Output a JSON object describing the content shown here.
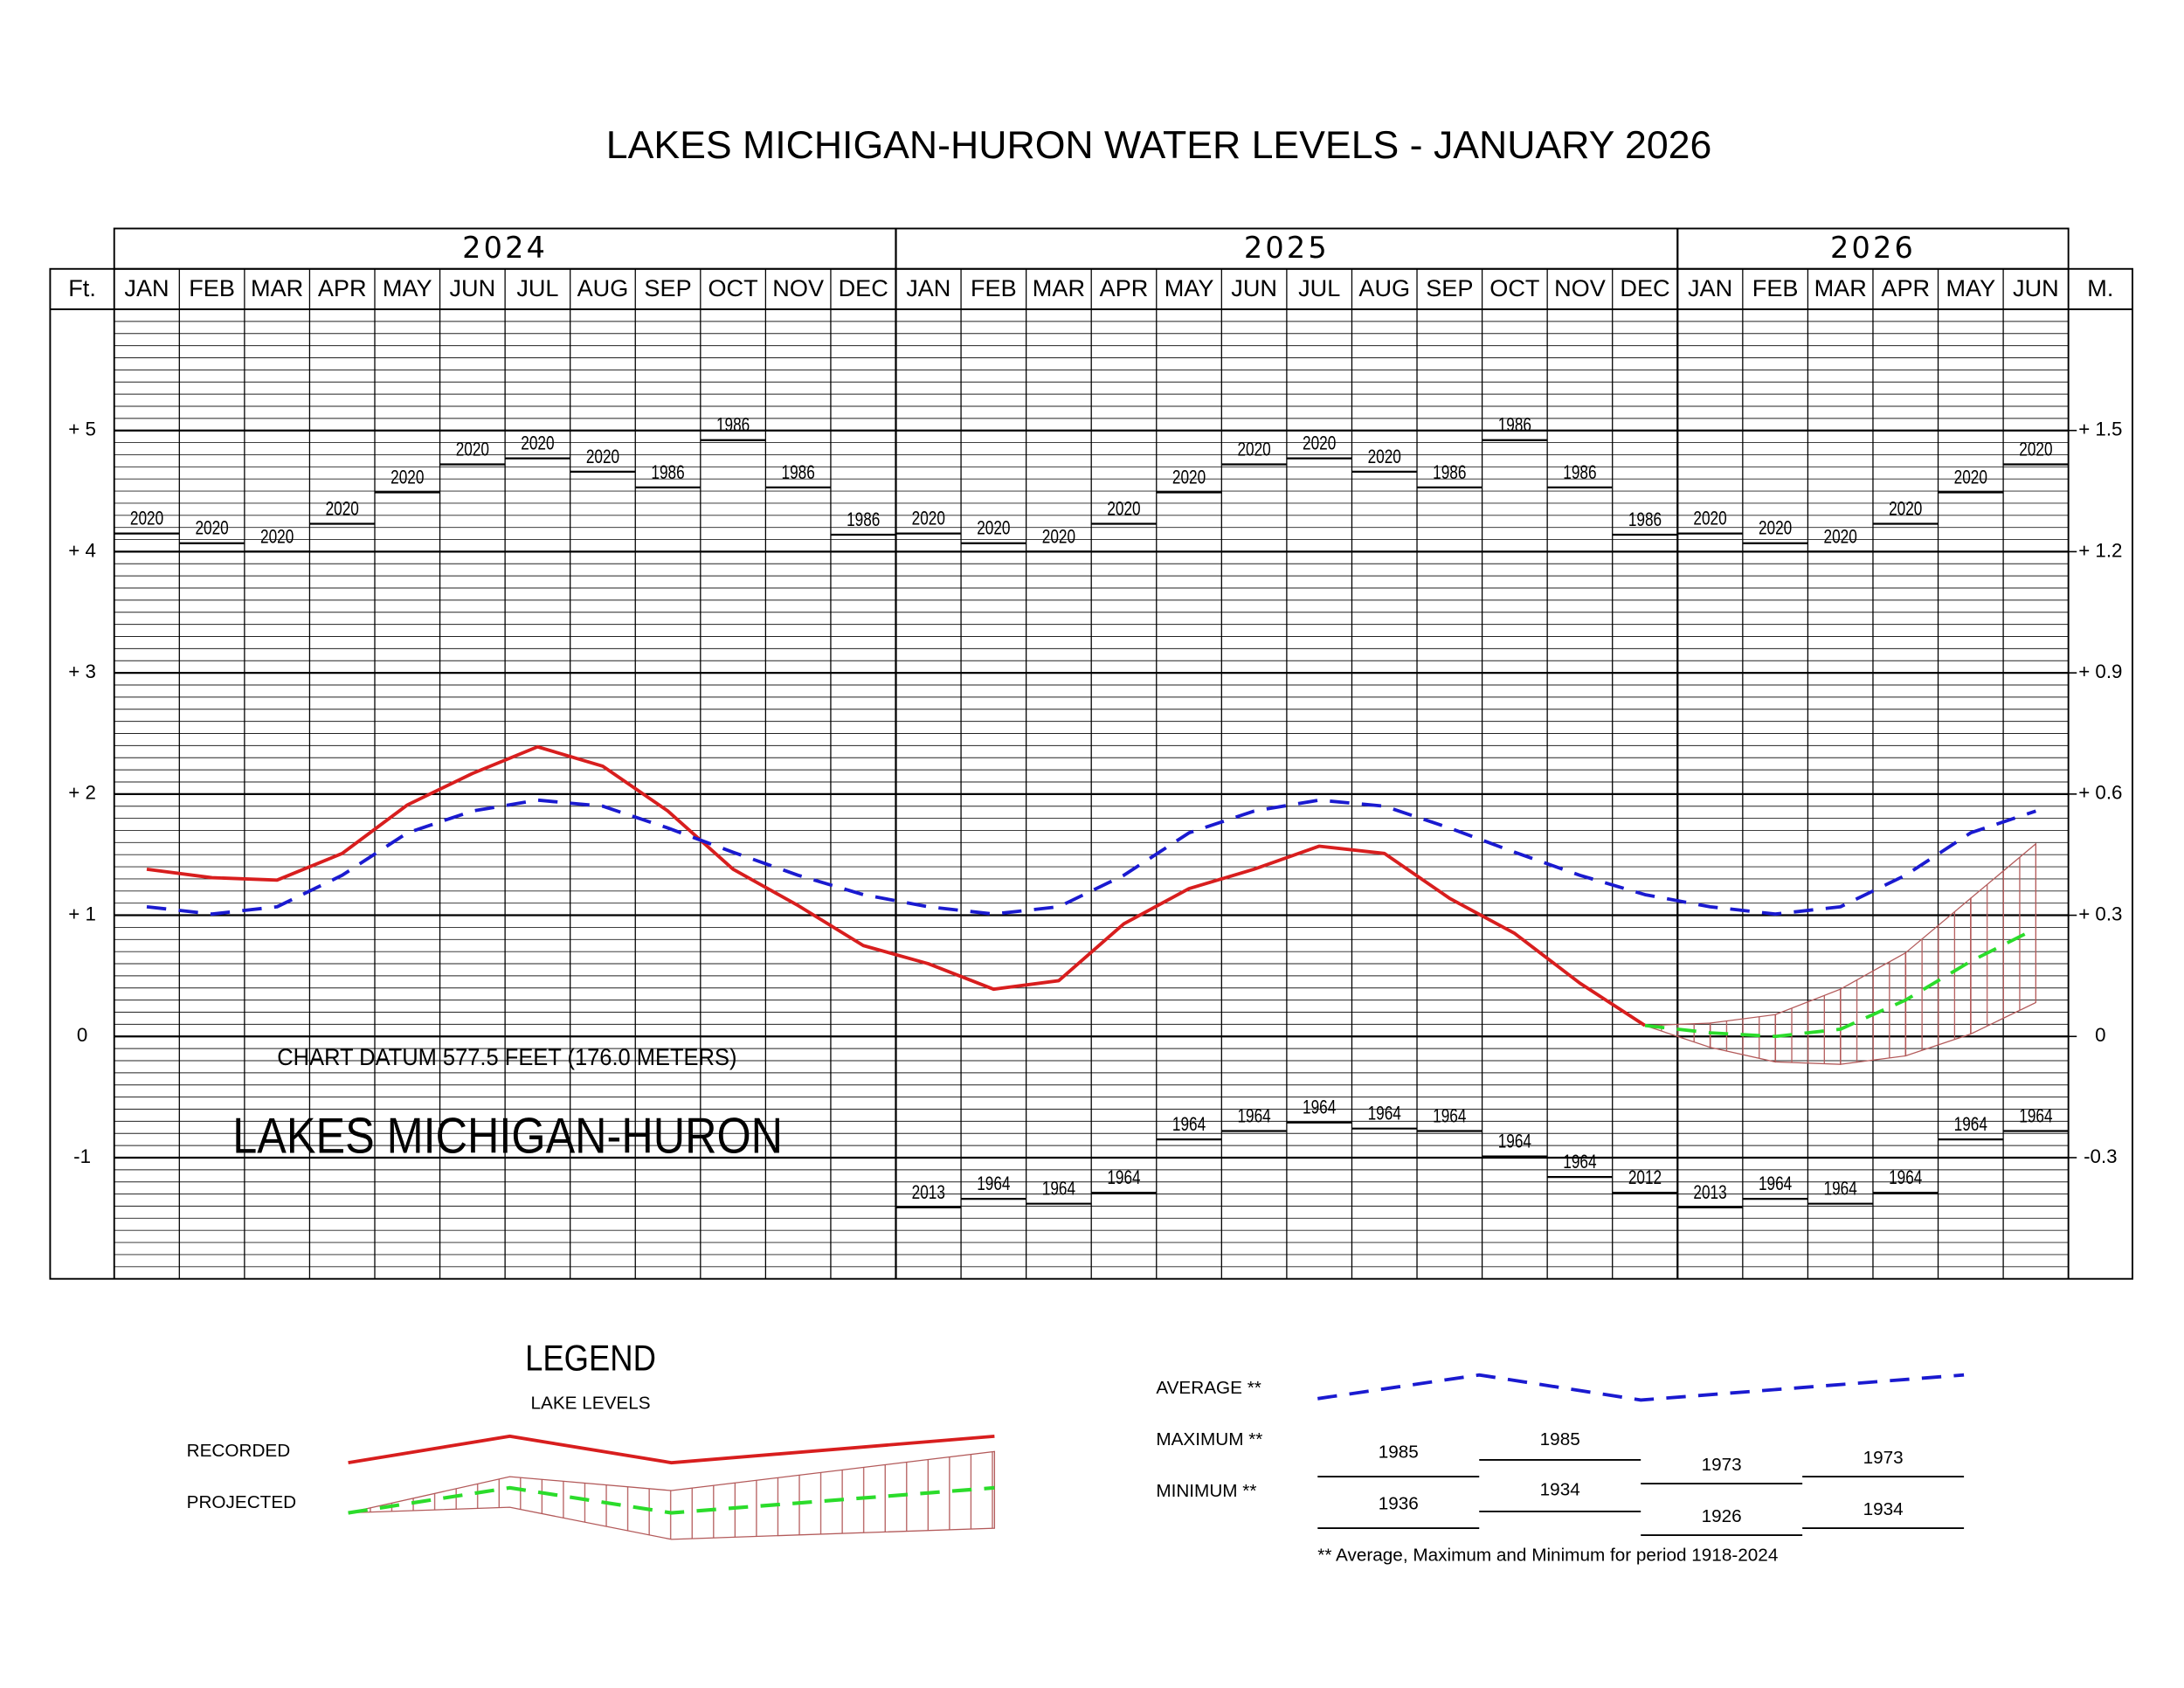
{
  "chart_data": {
    "type": "line",
    "title": "LAKES MICHIGAN-HURON WATER LEVELS - JANUARY 2026",
    "years": [
      "2024",
      "2025",
      "2026"
    ],
    "categories": [
      "JAN",
      "FEB",
      "MAR",
      "APR",
      "MAY",
      "JUN",
      "JUL",
      "AUG",
      "SEP",
      "OCT",
      "NOV",
      "DEC",
      "JAN",
      "FEB",
      "MAR",
      "APR",
      "MAY",
      "JUN",
      "JUL",
      "AUG",
      "SEP",
      "OCT",
      "NOV",
      "DEC",
      "JAN",
      "FEB",
      "MAR",
      "APR",
      "MAY",
      "JUN"
    ],
    "y_label": "Ft.",
    "y2_label": "M.",
    "ylim": [
      -2,
      6
    ],
    "yticks": [
      -1,
      0,
      {
        "value": 1,
        "label": "+ 1"
      },
      {
        "value": 2,
        "label": "+ 2"
      },
      {
        "value": 3,
        "label": "+ 3"
      },
      {
        "value": 4,
        "label": "+ 4"
      },
      {
        "value": 5,
        "label": "+ 5"
      }
    ],
    "minor_yticks": [
      -1.9,
      -1.8,
      -1.7,
      -1.6,
      -1.5,
      -1.4,
      -1.3,
      -1.2,
      -1.1,
      -0.9,
      -0.8,
      -0.7,
      -0.6,
      -0.5,
      -0.4,
      -0.3,
      -0.2,
      -0.1,
      0.1,
      0.2,
      0.3,
      0.4,
      0.5,
      0.6,
      0.7,
      0.8,
      0.9,
      1.1,
      1.2,
      1.3,
      1.4,
      1.5,
      1.6,
      1.7,
      1.8,
      1.9,
      2.1,
      2.2,
      2.3,
      2.4,
      2.5,
      2.6,
      2.7,
      2.8,
      2.9,
      3.1,
      3.2,
      3.3,
      3.4,
      3.5,
      3.6,
      3.7,
      3.8,
      3.9,
      4.1,
      4.2,
      4.3,
      4.4,
      4.5,
      4.6,
      4.7,
      4.8,
      4.9,
      5.1,
      5.2,
      5.3,
      5.4,
      5.5,
      5.6,
      5.7,
      5.8,
      5.9
    ],
    "y2lim": [
      -0.6096,
      1.8288
    ],
    "y2ticks": [
      {
        "value": 1.524,
        "label": "+ 1.5"
      },
      {
        "value": 1.2192,
        "label": "+ 1.2"
      },
      {
        "value": 0.9144,
        "label": "+ 0.9"
      },
      {
        "value": 0.6096,
        "label": "+ 0.6"
      },
      {
        "value": 0.3048,
        "label": "+ 0.3"
      },
      0,
      {
        "value": -0.3048,
        "label": "-0.3"
      }
    ],
    "grid": true,
    "annotations": [
      "CHART DATUM  577.5 FEET (176.0 METERS)",
      "LAKES MICHIGAN-HURON"
    ],
    "series": [
      {
        "name": "RECORDED",
        "kind": "line",
        "color": "#d81e1e",
        "values": [
          1.38,
          1.31,
          1.29,
          1.51,
          1.91,
          2.17,
          2.39,
          2.23,
          1.86,
          1.38,
          1.08,
          0.75,
          0.6,
          0.39,
          0.46,
          0.93,
          1.22,
          1.38,
          1.57,
          1.51,
          1.14,
          0.85,
          0.44,
          0.09,
          null,
          null,
          null,
          null,
          null,
          null
        ]
      },
      {
        "name": "PROJECTED",
        "kind": "line",
        "line_style": "dashed",
        "color": "#2bdc2b",
        "band_color": "#b35a5a",
        "values": [
          null,
          null,
          null,
          null,
          null,
          null,
          null,
          null,
          null,
          null,
          null,
          null,
          null,
          null,
          null,
          null,
          null,
          null,
          null,
          null,
          null,
          null,
          null,
          0.09,
          0.03,
          0,
          0.06,
          0.3,
          0.62,
          0.89
        ],
        "band_upper": [
          null,
          null,
          null,
          null,
          null,
          null,
          null,
          null,
          null,
          null,
          null,
          null,
          null,
          null,
          null,
          null,
          null,
          null,
          null,
          null,
          null,
          null,
          null,
          0.09,
          0.11,
          0.18,
          0.39,
          0.69,
          1.14,
          1.59
        ],
        "band_lower": [
          null,
          null,
          null,
          null,
          null,
          null,
          null,
          null,
          null,
          null,
          null,
          null,
          null,
          null,
          null,
          null,
          null,
          null,
          null,
          null,
          null,
          null,
          null,
          0.09,
          -0.09,
          -0.21,
          -0.23,
          -0.16,
          0.02,
          0.28
        ]
      },
      {
        "name": "AVERAGE **",
        "kind": "line",
        "line_style": "dashed",
        "color": "#1a1ad0",
        "values": [
          1.07,
          1.01,
          1.07,
          1.33,
          1.68,
          1.86,
          1.95,
          1.9,
          1.72,
          1.52,
          1.33,
          1.17,
          1.07,
          1.01,
          1.07,
          1.33,
          1.68,
          1.86,
          1.95,
          1.9,
          1.72,
          1.52,
          1.33,
          1.17,
          1.07,
          1.01,
          1.07,
          1.33,
          1.68,
          1.86
        ]
      },
      {
        "name": "MAXIMUM **",
        "kind": "record",
        "color": "#000000",
        "values": [
          4.15,
          4.07,
          4.0,
          4.23,
          4.49,
          4.72,
          4.77,
          4.66,
          4.53,
          4.92,
          4.53,
          4.14,
          4.15,
          4.07,
          4.0,
          4.23,
          4.49,
          4.72,
          4.77,
          4.66,
          4.53,
          4.92,
          4.53,
          4.14,
          4.15,
          4.07,
          4.0,
          4.23,
          4.49,
          4.72
        ],
        "record_years": [
          "2020",
          "2020",
          "2020",
          "2020",
          "2020",
          "2020",
          "2020",
          "2020",
          "1986",
          "1986",
          "1986",
          "1986",
          "2020",
          "2020",
          "2020",
          "2020",
          "2020",
          "2020",
          "2020",
          "2020",
          "1986",
          "1986",
          "1986",
          "1986",
          "2020",
          "2020",
          "2020",
          "2020",
          "2020",
          "2020"
        ]
      },
      {
        "name": "MINIMUM **",
        "kind": "record",
        "color": "#000000",
        "values": [
          null,
          null,
          null,
          null,
          null,
          null,
          null,
          null,
          null,
          null,
          null,
          null,
          -1.41,
          -1.34,
          -1.38,
          -1.29,
          -0.85,
          -0.78,
          -0.71,
          -0.76,
          -0.78,
          -0.99,
          -1.16,
          -1.29,
          -1.41,
          -1.34,
          -1.38,
          -1.29,
          -0.85,
          -0.78
        ],
        "record_years": [
          null,
          null,
          null,
          null,
          null,
          null,
          null,
          null,
          null,
          null,
          null,
          null,
          "2013",
          "1964",
          "1964",
          "1964",
          "1964",
          "1964",
          "1964",
          "1964",
          "1964",
          "1964",
          "1964",
          "2012",
          "2013",
          "1964",
          "1964",
          "1964",
          "1964",
          "1964"
        ]
      }
    ],
    "legend": {
      "title": "LEGEND",
      "subtitle": "LAKE LEVELS",
      "max_years": [
        "1985",
        "1985",
        "1973",
        "1973"
      ],
      "min_years": [
        "1936",
        "1934",
        "1926",
        "1934"
      ],
      "footnote": "** Average, Maximum and Minimum for period 1918-2024"
    }
  }
}
